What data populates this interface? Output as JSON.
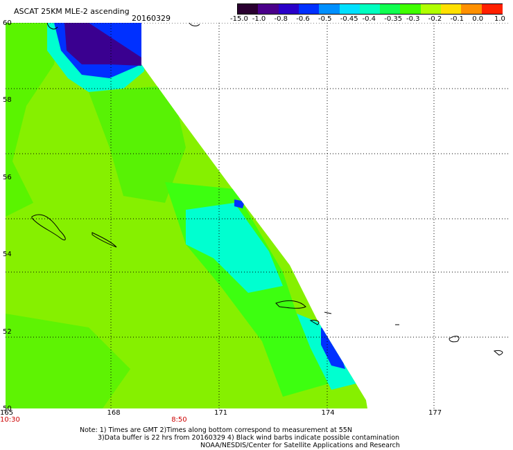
{
  "header": {
    "title": "ASCAT 25KM MLE-2 ascending",
    "date": "20160329"
  },
  "colorbar": {
    "labels": [
      "-15.0",
      "-1.0",
      "-0.8",
      "-0.6",
      "-0.5",
      "-0.45",
      "-0.4",
      "-0.35",
      "-0.3",
      "-0.2",
      "-0.1",
      "0.0",
      "1.0"
    ],
    "colors": [
      "#2a0030",
      "#4a008a",
      "#2a00c8",
      "#0030ff",
      "#0090ff",
      "#00e0ff",
      "#00ffc0",
      "#10ff50",
      "#40ff00",
      "#b0ff00",
      "#ffe000",
      "#ff9000",
      "#ff2000"
    ]
  },
  "map": {
    "lat_labels": [
      "60",
      "58",
      "56",
      "54",
      "52",
      "50"
    ],
    "lon_labels": [
      "165",
      "168",
      "171",
      "174",
      "177"
    ],
    "time_labels": [
      {
        "text": "10:30",
        "lon": 165
      },
      {
        "text": "8:50",
        "lon": 169.8
      }
    ],
    "colors": {
      "grid": "#000000",
      "data_main": "#86f000",
      "data_green": "#3dff10",
      "data_cyan": "#00ffd0",
      "data_blue": "#0030ff",
      "data_purple": "#3a0090",
      "time_label": "#cc0000"
    }
  },
  "notes": {
    "line1": "Note: 1) Times are GMT 2)Times along bottom correspond to measurement at 55N",
    "line2": "3)Data buffer is 22 hrs from 20160329 4) Black wind barbs indicate possible contamination",
    "line3": "NOAA/NESDIS/Center for Satellite Applications and Research"
  }
}
